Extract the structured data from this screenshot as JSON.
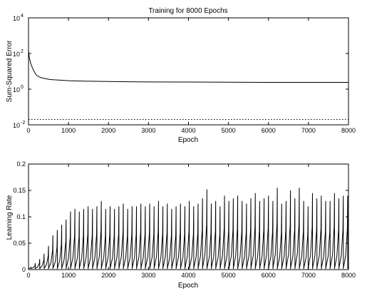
{
  "chart_data": [
    {
      "type": "line",
      "title": "Training for 8000 Epochs",
      "xlabel": "Epoch",
      "ylabel": "Sum-Squared Error",
      "xlim": [
        0,
        8000
      ],
      "ylim": [
        0.01,
        10000
      ],
      "yscale": "log",
      "grid": false,
      "x_ticks": [
        0,
        1000,
        2000,
        3000,
        4000,
        5000,
        6000,
        7000,
        8000
      ],
      "y_ticks": [
        {
          "base": "10",
          "exp": "-2",
          "value": 0.01
        },
        {
          "base": "10",
          "exp": "0",
          "value": 1
        },
        {
          "base": "10",
          "exp": "2",
          "value": 100
        },
        {
          "base": "10",
          "exp": "4",
          "value": 10000
        }
      ],
      "series": [
        {
          "style": "solid",
          "x": [
            0,
            20,
            50,
            100,
            150,
            200,
            300,
            400,
            500,
            600,
            800,
            1000,
            1200,
            1500,
            2000,
            2500,
            3000,
            4000,
            5000,
            6000,
            7000,
            8000
          ],
          "y": [
            150,
            60,
            30,
            15,
            9,
            6,
            4.5,
            4,
            3.6,
            3.4,
            3.2,
            3.0,
            2.9,
            2.8,
            2.7,
            2.6,
            2.55,
            2.5,
            2.45,
            2.4,
            2.4,
            2.4
          ]
        },
        {
          "style": "dotted",
          "x": [
            0,
            8000
          ],
          "y": [
            0.02,
            0.02
          ]
        }
      ]
    },
    {
      "type": "line",
      "title": "",
      "xlabel": "Epoch",
      "ylabel": "Learning Rate",
      "xlim": [
        0,
        8000
      ],
      "ylim": [
        0,
        0.2
      ],
      "grid": false,
      "x_ticks": [
        0,
        1000,
        2000,
        3000,
        4000,
        5000,
        6000,
        7000,
        8000
      ],
      "y_ticks": [
        0,
        0.05,
        0.1,
        0.15,
        0.2
      ],
      "series": [
        {
          "style": "solid",
          "pattern": "sawtooth",
          "peak_x": [
            60,
            170,
            280,
            390,
            500,
            610,
            720,
            830,
            940,
            1050,
            1160,
            1270,
            1380,
            1490,
            1600,
            1710,
            1820,
            1930,
            2040,
            2150,
            2260,
            2370,
            2480,
            2590,
            2700,
            2810,
            2920,
            3030,
            3140,
            3250,
            3360,
            3470,
            3580,
            3690,
            3800,
            3910,
            4020,
            4130,
            4240,
            4350,
            4460,
            4570,
            4680,
            4790,
            4900,
            5010,
            5120,
            5230,
            5340,
            5450,
            5560,
            5670,
            5780,
            5890,
            6000,
            6110,
            6220,
            6330,
            6440,
            6550,
            6660,
            6770,
            6880,
            6990,
            7100,
            7210,
            7320,
            7430,
            7540,
            7650,
            7760,
            7870,
            7980
          ],
          "peak_y": [
            0.005,
            0.012,
            0.02,
            0.03,
            0.045,
            0.065,
            0.075,
            0.085,
            0.095,
            0.11,
            0.115,
            0.11,
            0.115,
            0.12,
            0.115,
            0.12,
            0.13,
            0.115,
            0.12,
            0.115,
            0.12,
            0.125,
            0.115,
            0.12,
            0.12,
            0.125,
            0.12,
            0.125,
            0.12,
            0.13,
            0.12,
            0.125,
            0.115,
            0.12,
            0.125,
            0.12,
            0.13,
            0.12,
            0.125,
            0.135,
            0.152,
            0.125,
            0.13,
            0.12,
            0.14,
            0.13,
            0.135,
            0.14,
            0.13,
            0.125,
            0.135,
            0.145,
            0.13,
            0.135,
            0.14,
            0.13,
            0.155,
            0.125,
            0.13,
            0.15,
            0.135,
            0.155,
            0.13,
            0.12,
            0.145,
            0.135,
            0.14,
            0.13,
            0.13,
            0.145,
            0.135,
            0.14,
            0.14
          ],
          "trough_y": 0.002
        }
      ]
    }
  ]
}
